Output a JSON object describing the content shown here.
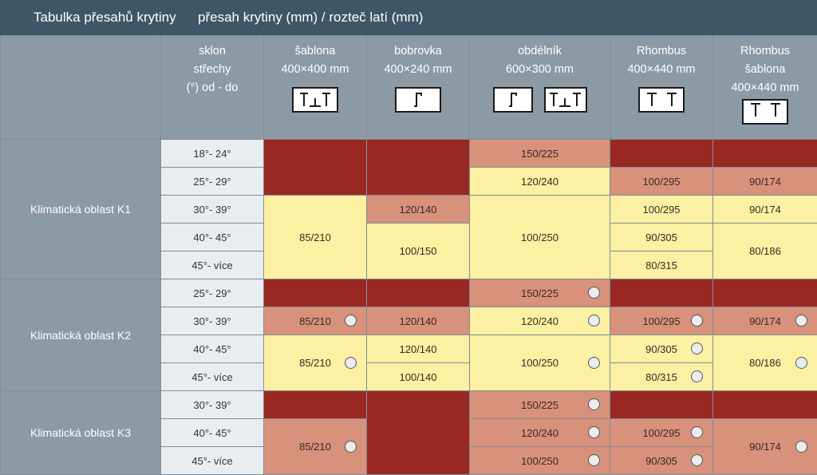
{
  "title": "Tabulka přesahů krytiny",
  "subtitle": "přesah krytiny (mm) / rozteč latí (mm)",
  "headers": {
    "slope": [
      "sklon",
      "střechy",
      "(°) od - do"
    ],
    "sablona": [
      "šablona",
      "400×400 mm"
    ],
    "bobrovka": [
      "bobrovka",
      "400×240 mm"
    ],
    "obdelnik": [
      "obdélník",
      "600×300 mm"
    ],
    "rhombus": [
      "Rhombus",
      "400×440 mm"
    ],
    "rhombus_sablona": [
      "Rhombus",
      "šablona",
      "400×440 mm"
    ]
  },
  "regions": [
    "Klimatická oblast K1",
    "Klimatická oblast K2",
    "Klimatická oblast K3"
  ],
  "angles": {
    "k1": [
      "18°- 24°",
      "25°- 29°",
      "30°- 39°",
      "40°- 45°",
      "45°- více"
    ],
    "k2": [
      "25°- 29°",
      "30°- 39°",
      "40°- 45°",
      "45°- více"
    ],
    "k3": [
      "30°- 39°",
      "40°- 45°",
      "45°- více"
    ]
  },
  "values": {
    "k1": {
      "sablona": "85/210",
      "bobrovka": [
        "120/140",
        "100/150"
      ],
      "obdelnik": [
        "150/225",
        "120/240",
        "100/250"
      ],
      "rhombus": [
        "100/295",
        "100/295",
        "90/305",
        "80/315"
      ],
      "rhombus_sablona": [
        "90/174",
        "90/174",
        "80/186"
      ]
    },
    "k2": {
      "sablona": [
        "85/210",
        "85/210"
      ],
      "bobrovka": [
        "120/140",
        "120/140",
        "100/140"
      ],
      "obdelnik": [
        "150/225",
        "120/240",
        "100/250"
      ],
      "rhombus": [
        "100/295",
        "90/305",
        "80/315"
      ],
      "rhombus_sablona": [
        "90/174",
        "80/186"
      ]
    },
    "k3": {
      "sablona": "85/210",
      "obdelnik": [
        "150/225",
        "120/240",
        "100/250"
      ],
      "rhombus": [
        "100/295",
        "90/305"
      ],
      "rhombus_sablona": "90/174"
    }
  },
  "colors": {
    "not_allowed": "#9a2822",
    "with_measure": "#d8917a",
    "standard": "#fcf0a2",
    "header": "#8c9aa5",
    "title_bar": "#3d5766"
  },
  "icons": {
    "circle": "circle-marker-icon",
    "sablona": "sablona-tile-icon",
    "bobrovka": "bobrovka-tile-icon",
    "obdelnik": "obdelnik-tile-icon",
    "rhombus": "rhombus-tile-icon"
  }
}
